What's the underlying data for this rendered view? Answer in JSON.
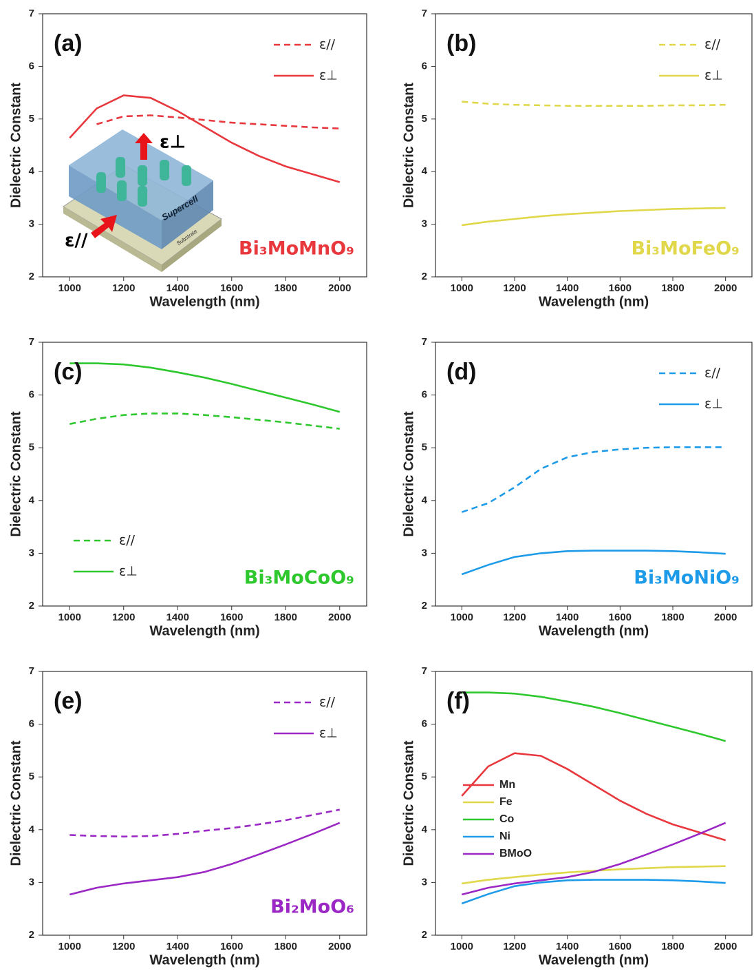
{
  "chart_data": [
    {
      "type": "line",
      "panel": "(a)",
      "material": "Bi₃MoMnO₉",
      "x_label": "Wavelength (nm)",
      "y_label": "Dielectric Constant",
      "x": [
        1000,
        1100,
        1200,
        1300,
        1400,
        1500,
        1600,
        1700,
        1800,
        1900,
        2000
      ],
      "series": [
        {
          "name": "ε//",
          "color": "#e8383d",
          "linestyle": "dashed",
          "values": [
            null,
            4.9,
            5.05,
            5.07,
            5.03,
            4.98,
            4.93,
            4.9,
            4.87,
            4.84,
            4.82
          ]
        },
        {
          "name": "ε⊥",
          "color": "#e8383d",
          "linestyle": "solid",
          "values": [
            4.64,
            5.2,
            5.45,
            5.4,
            5.15,
            4.85,
            4.55,
            4.3,
            4.1,
            3.95,
            3.8
          ]
        }
      ],
      "xlim": [
        900,
        2100
      ],
      "ylim": [
        2,
        7
      ],
      "xticks": [
        1000,
        1200,
        1400,
        1600,
        1800,
        2000
      ],
      "yticks": [
        2,
        3,
        4,
        5,
        6,
        7
      ],
      "legend": "upper right",
      "inset_labels": [
        "ε⊥",
        "ε//",
        "Supercell",
        "Substrate"
      ]
    },
    {
      "type": "line",
      "panel": "(b)",
      "material": "Bi₃MoFeO₉",
      "x_label": "Wavelength (nm)",
      "y_label": "Dielectric Constant",
      "x": [
        1000,
        1100,
        1200,
        1300,
        1400,
        1500,
        1600,
        1700,
        1800,
        1900,
        2000
      ],
      "series": [
        {
          "name": "ε//",
          "color": "#e0d84a",
          "linestyle": "dashed",
          "values": [
            5.33,
            5.29,
            5.27,
            5.26,
            5.25,
            5.25,
            5.25,
            5.25,
            5.26,
            5.26,
            5.27
          ]
        },
        {
          "name": "ε⊥",
          "color": "#e0d84a",
          "linestyle": "solid",
          "values": [
            2.98,
            3.05,
            3.1,
            3.15,
            3.19,
            3.22,
            3.25,
            3.27,
            3.29,
            3.3,
            3.31
          ]
        }
      ],
      "xlim": [
        900,
        2100
      ],
      "ylim": [
        2,
        7
      ],
      "xticks": [
        1000,
        1200,
        1400,
        1600,
        1800,
        2000
      ],
      "yticks": [
        2,
        3,
        4,
        5,
        6,
        7
      ],
      "legend": "upper right"
    },
    {
      "type": "line",
      "panel": "(c)",
      "material": "Bi₃MoCoO₉",
      "x_label": "Wavelength (nm)",
      "y_label": "Dielectric Constant",
      "x": [
        1000,
        1100,
        1200,
        1300,
        1400,
        1500,
        1600,
        1700,
        1800,
        1900,
        2000
      ],
      "series": [
        {
          "name": "ε//",
          "color": "#2ec82e",
          "linestyle": "dashed",
          "values": [
            5.45,
            5.55,
            5.62,
            5.65,
            5.65,
            5.62,
            5.58,
            5.53,
            5.48,
            5.42,
            5.36
          ]
        },
        {
          "name": "ε⊥",
          "color": "#2ec82e",
          "linestyle": "solid",
          "values": [
            6.6,
            6.6,
            6.58,
            6.52,
            6.43,
            6.33,
            6.21,
            6.08,
            5.95,
            5.82,
            5.68
          ]
        }
      ],
      "xlim": [
        900,
        2100
      ],
      "ylim": [
        2,
        7
      ],
      "xticks": [
        1000,
        1200,
        1400,
        1600,
        1800,
        2000
      ],
      "yticks": [
        2,
        3,
        4,
        5,
        6,
        7
      ],
      "legend": "lower left"
    },
    {
      "type": "line",
      "panel": "(d)",
      "material": "Bi₃MoNiO₉",
      "x_label": "Wavelength (nm)",
      "y_label": "Dielectric Constant",
      "x": [
        1000,
        1100,
        1200,
        1300,
        1400,
        1500,
        1600,
        1700,
        1800,
        1900,
        2000
      ],
      "series": [
        {
          "name": "ε//",
          "color": "#1e9be8",
          "linestyle": "dashed",
          "values": [
            3.78,
            3.95,
            4.25,
            4.6,
            4.82,
            4.92,
            4.97,
            5.0,
            5.01,
            5.01,
            5.01
          ]
        },
        {
          "name": "ε⊥",
          "color": "#1e9be8",
          "linestyle": "solid",
          "values": [
            2.6,
            2.78,
            2.93,
            3.0,
            3.04,
            3.05,
            3.05,
            3.05,
            3.04,
            3.02,
            2.99
          ]
        }
      ],
      "xlim": [
        900,
        2100
      ],
      "ylim": [
        2,
        7
      ],
      "xticks": [
        1000,
        1200,
        1400,
        1600,
        1800,
        2000
      ],
      "yticks": [
        2,
        3,
        4,
        5,
        6,
        7
      ],
      "legend": "upper right"
    },
    {
      "type": "line",
      "panel": "(e)",
      "material": "Bi₂MoO₆",
      "x_label": "Wavelength (nm)",
      "y_label": "Dielectric Constant",
      "x": [
        1000,
        1100,
        1200,
        1300,
        1400,
        1500,
        1600,
        1700,
        1800,
        1900,
        2000
      ],
      "series": [
        {
          "name": "ε//",
          "color": "#9b27c4",
          "linestyle": "dashed",
          "values": [
            3.9,
            3.88,
            3.87,
            3.88,
            3.92,
            3.98,
            4.03,
            4.1,
            4.18,
            4.28,
            4.38
          ]
        },
        {
          "name": "ε⊥",
          "color": "#9b27c4",
          "linestyle": "solid",
          "values": [
            2.77,
            2.9,
            2.98,
            3.04,
            3.1,
            3.2,
            3.35,
            3.53,
            3.72,
            3.92,
            4.13
          ]
        }
      ],
      "xlim": [
        900,
        2100
      ],
      "ylim": [
        2,
        7
      ],
      "xticks": [
        1000,
        1200,
        1400,
        1600,
        1800,
        2000
      ],
      "yticks": [
        2,
        3,
        4,
        5,
        6,
        7
      ],
      "legend": "upper right"
    },
    {
      "type": "line",
      "panel": "(f)",
      "x_label": "Wavelength (nm)",
      "y_label": "Dielectric Constant",
      "x": [
        1000,
        1100,
        1200,
        1300,
        1400,
        1500,
        1600,
        1700,
        1800,
        1900,
        2000
      ],
      "series": [
        {
          "name": "Mn",
          "color": "#e8383d",
          "linestyle": "solid",
          "values": [
            4.64,
            5.2,
            5.45,
            5.4,
            5.15,
            4.85,
            4.55,
            4.3,
            4.1,
            3.95,
            3.8
          ]
        },
        {
          "name": "Fe",
          "color": "#e0d84a",
          "linestyle": "solid",
          "values": [
            2.98,
            3.05,
            3.1,
            3.15,
            3.19,
            3.22,
            3.25,
            3.27,
            3.29,
            3.3,
            3.31
          ]
        },
        {
          "name": "Co",
          "color": "#2ec82e",
          "linestyle": "solid",
          "values": [
            6.6,
            6.6,
            6.58,
            6.52,
            6.43,
            6.33,
            6.21,
            6.08,
            5.95,
            5.82,
            5.68
          ]
        },
        {
          "name": "Ni",
          "color": "#1e9be8",
          "linestyle": "solid",
          "values": [
            2.6,
            2.78,
            2.93,
            3.0,
            3.04,
            3.05,
            3.05,
            3.05,
            3.04,
            3.02,
            2.99
          ]
        },
        {
          "name": "BMoO",
          "color": "#9b27c4",
          "linestyle": "solid",
          "values": [
            2.77,
            2.9,
            2.98,
            3.04,
            3.1,
            3.2,
            3.35,
            3.53,
            3.72,
            3.92,
            4.13
          ]
        }
      ],
      "xlim": [
        900,
        2100
      ],
      "ylim": [
        2,
        7
      ],
      "xticks": [
        1000,
        1200,
        1400,
        1600,
        1800,
        2000
      ],
      "yticks": [
        2,
        3,
        4,
        5,
        6,
        7
      ],
      "legend": "center left"
    }
  ]
}
